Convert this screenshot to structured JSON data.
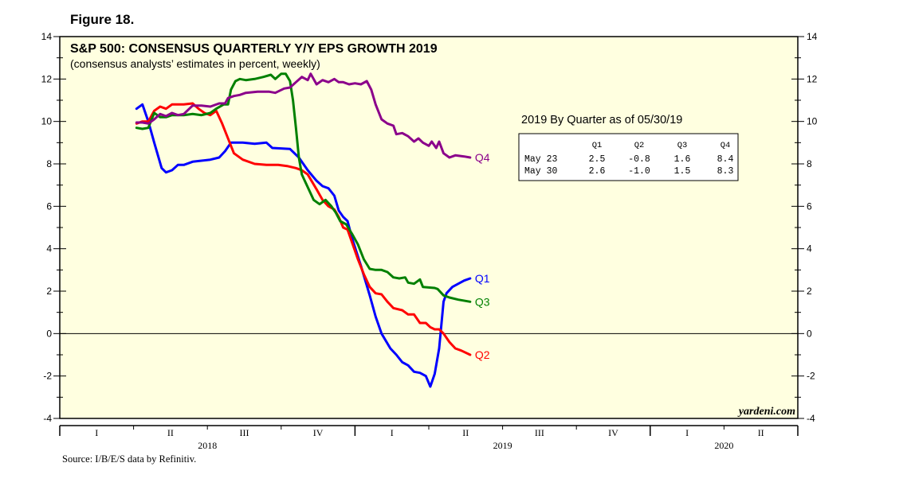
{
  "figure_label": "Figure 18.",
  "source": "Source: I/B/E/S data by Refinitiv.",
  "brand": "yardeni.com",
  "colors": {
    "plot_bg": "#ffffe0",
    "Q1": "#0000ff",
    "Q2": "#ff0000",
    "Q3": "#008000",
    "Q4": "#8b008b"
  },
  "table": {
    "title": "2019 By Quarter as of 05/30/19",
    "headers": [
      "Q1",
      "Q2",
      "Q3",
      "Q4"
    ],
    "rows": [
      {
        "label": "May 23",
        "values": [
          "2.5",
          "-0.8",
          "1.6",
          "8.4"
        ]
      },
      {
        "label": "May 30",
        "values": [
          "2.6",
          "-1.0",
          "1.5",
          "8.3"
        ]
      }
    ]
  },
  "chart_data": {
    "type": "line",
    "title": "S&P 500: CONSENSUS QUARTERLY Y/Y EPS GROWTH 2019",
    "subtitle": "(consensus analysts’ estimates in percent, weekly)",
    "xlabel": "",
    "ylabel": "",
    "xlim": [
      2018.0,
      2020.5
    ],
    "ylim": [
      -4,
      14
    ],
    "yticks": [
      -4,
      -2,
      0,
      2,
      4,
      6,
      8,
      10,
      12,
      14
    ],
    "grid": false,
    "zero_line": true,
    "quarter_labels": [
      "I",
      "II",
      "III",
      "IV",
      "I",
      "II",
      "III",
      "IV",
      "I",
      "II"
    ],
    "year_labels": [
      "2018",
      "2019",
      "2020"
    ],
    "series": [
      {
        "name": "Q1",
        "points": [
          [
            2018.26,
            10.6
          ],
          [
            2018.28,
            10.8
          ],
          [
            2018.3,
            10.0
          ],
          [
            2018.32,
            9.0
          ],
          [
            2018.345,
            7.8
          ],
          [
            2018.36,
            7.6
          ],
          [
            2018.38,
            7.7
          ],
          [
            2018.4,
            7.95
          ],
          [
            2018.42,
            7.95
          ],
          [
            2018.45,
            8.1
          ],
          [
            2018.48,
            8.15
          ],
          [
            2018.51,
            8.2
          ],
          [
            2018.54,
            8.3
          ],
          [
            2018.56,
            8.6
          ],
          [
            2018.58,
            9.0
          ],
          [
            2018.62,
            9.0
          ],
          [
            2018.66,
            8.95
          ],
          [
            2018.7,
            9.0
          ],
          [
            2018.72,
            8.75
          ],
          [
            2018.78,
            8.7
          ],
          [
            2018.81,
            8.3
          ],
          [
            2018.84,
            7.7
          ],
          [
            2018.87,
            7.2
          ],
          [
            2018.89,
            6.95
          ],
          [
            2018.91,
            6.85
          ],
          [
            2018.93,
            6.5
          ],
          [
            2018.945,
            5.8
          ],
          [
            2018.96,
            5.5
          ],
          [
            2018.975,
            5.3
          ],
          [
            2018.99,
            4.5
          ],
          [
            2019.02,
            3.2
          ],
          [
            2019.05,
            1.8
          ],
          [
            2019.07,
            0.8
          ],
          [
            2019.09,
            0.0
          ],
          [
            2019.12,
            -0.7
          ],
          [
            2019.14,
            -1.0
          ],
          [
            2019.16,
            -1.35
          ],
          [
            2019.18,
            -1.5
          ],
          [
            2019.2,
            -1.8
          ],
          [
            2019.22,
            -1.85
          ],
          [
            2019.24,
            -2.0
          ],
          [
            2019.255,
            -2.5
          ],
          [
            2019.27,
            -1.9
          ],
          [
            2019.285,
            -0.7
          ],
          [
            2019.3,
            1.5
          ],
          [
            2019.31,
            1.9
          ],
          [
            2019.33,
            2.2
          ],
          [
            2019.35,
            2.35
          ],
          [
            2019.37,
            2.5
          ],
          [
            2019.39,
            2.6
          ]
        ]
      },
      {
        "name": "Q2",
        "points": [
          [
            2018.26,
            9.9
          ],
          [
            2018.28,
            10.0
          ],
          [
            2018.3,
            10.0
          ],
          [
            2018.32,
            10.5
          ],
          [
            2018.34,
            10.7
          ],
          [
            2018.36,
            10.6
          ],
          [
            2018.38,
            10.8
          ],
          [
            2018.42,
            10.8
          ],
          [
            2018.45,
            10.85
          ],
          [
            2018.47,
            10.6
          ],
          [
            2018.49,
            10.4
          ],
          [
            2018.51,
            10.3
          ],
          [
            2018.53,
            10.5
          ],
          [
            2018.55,
            9.9
          ],
          [
            2018.57,
            9.2
          ],
          [
            2018.59,
            8.5
          ],
          [
            2018.62,
            8.2
          ],
          [
            2018.66,
            8.0
          ],
          [
            2018.7,
            7.95
          ],
          [
            2018.74,
            7.95
          ],
          [
            2018.77,
            7.9
          ],
          [
            2018.8,
            7.8
          ],
          [
            2018.82,
            7.7
          ],
          [
            2018.84,
            7.5
          ],
          [
            2018.87,
            6.8
          ],
          [
            2018.89,
            6.3
          ],
          [
            2018.91,
            6.0
          ],
          [
            2018.93,
            5.85
          ],
          [
            2018.945,
            5.5
          ],
          [
            2018.96,
            5.0
          ],
          [
            2018.975,
            4.9
          ],
          [
            2018.99,
            4.3
          ],
          [
            2019.01,
            3.5
          ],
          [
            2019.03,
            2.8
          ],
          [
            2019.05,
            2.2
          ],
          [
            2019.07,
            1.9
          ],
          [
            2019.09,
            1.85
          ],
          [
            2019.11,
            1.5
          ],
          [
            2019.13,
            1.2
          ],
          [
            2019.16,
            1.1
          ],
          [
            2019.18,
            0.9
          ],
          [
            2019.2,
            0.9
          ],
          [
            2019.22,
            0.5
          ],
          [
            2019.24,
            0.5
          ],
          [
            2019.255,
            0.3
          ],
          [
            2019.27,
            0.2
          ],
          [
            2019.285,
            0.2
          ],
          [
            2019.3,
            0.0
          ],
          [
            2019.32,
            -0.4
          ],
          [
            2019.34,
            -0.7
          ],
          [
            2019.36,
            -0.8
          ],
          [
            2019.39,
            -1.0
          ]
        ]
      },
      {
        "name": "Q3",
        "points": [
          [
            2018.26,
            9.7
          ],
          [
            2018.28,
            9.65
          ],
          [
            2018.3,
            9.7
          ],
          [
            2018.32,
            10.4
          ],
          [
            2018.34,
            10.2
          ],
          [
            2018.36,
            10.2
          ],
          [
            2018.38,
            10.3
          ],
          [
            2018.42,
            10.3
          ],
          [
            2018.45,
            10.35
          ],
          [
            2018.48,
            10.3
          ],
          [
            2018.51,
            10.4
          ],
          [
            2018.53,
            10.6
          ],
          [
            2018.555,
            10.8
          ],
          [
            2018.57,
            10.8
          ],
          [
            2018.58,
            11.5
          ],
          [
            2018.595,
            11.9
          ],
          [
            2018.61,
            12.0
          ],
          [
            2018.63,
            11.95
          ],
          [
            2018.66,
            12.0
          ],
          [
            2018.69,
            12.1
          ],
          [
            2018.715,
            12.2
          ],
          [
            2018.73,
            12.0
          ],
          [
            2018.75,
            12.25
          ],
          [
            2018.765,
            12.25
          ],
          [
            2018.78,
            11.9
          ],
          [
            2018.79,
            11.0
          ],
          [
            2018.8,
            9.7
          ],
          [
            2018.81,
            8.3
          ],
          [
            2018.82,
            7.5
          ],
          [
            2018.84,
            6.9
          ],
          [
            2018.86,
            6.3
          ],
          [
            2018.88,
            6.1
          ],
          [
            2018.9,
            6.3
          ],
          [
            2018.92,
            6.0
          ],
          [
            2018.935,
            5.7
          ],
          [
            2018.95,
            5.3
          ],
          [
            2018.97,
            5.15
          ],
          [
            2018.99,
            4.7
          ],
          [
            2019.01,
            4.2
          ],
          [
            2019.03,
            3.5
          ],
          [
            2019.05,
            3.05
          ],
          [
            2019.07,
            3.0
          ],
          [
            2019.09,
            3.0
          ],
          [
            2019.11,
            2.9
          ],
          [
            2019.13,
            2.65
          ],
          [
            2019.15,
            2.6
          ],
          [
            2019.17,
            2.65
          ],
          [
            2019.18,
            2.4
          ],
          [
            2019.2,
            2.35
          ],
          [
            2019.22,
            2.55
          ],
          [
            2019.23,
            2.2
          ],
          [
            2019.27,
            2.15
          ],
          [
            2019.28,
            2.1
          ],
          [
            2019.3,
            1.8
          ],
          [
            2019.32,
            1.7
          ],
          [
            2019.35,
            1.6
          ],
          [
            2019.39,
            1.5
          ]
        ]
      },
      {
        "name": "Q4",
        "points": [
          [
            2018.26,
            9.95
          ],
          [
            2018.28,
            9.95
          ],
          [
            2018.3,
            9.9
          ],
          [
            2018.32,
            10.1
          ],
          [
            2018.34,
            10.35
          ],
          [
            2018.36,
            10.25
          ],
          [
            2018.38,
            10.4
          ],
          [
            2018.4,
            10.3
          ],
          [
            2018.42,
            10.35
          ],
          [
            2018.45,
            10.75
          ],
          [
            2018.48,
            10.75
          ],
          [
            2018.51,
            10.7
          ],
          [
            2018.54,
            10.85
          ],
          [
            2018.56,
            10.85
          ],
          [
            2018.57,
            11.1
          ],
          [
            2018.59,
            11.2
          ],
          [
            2018.61,
            11.25
          ],
          [
            2018.63,
            11.35
          ],
          [
            2018.67,
            11.4
          ],
          [
            2018.71,
            11.4
          ],
          [
            2018.73,
            11.35
          ],
          [
            2018.76,
            11.55
          ],
          [
            2018.78,
            11.6
          ],
          [
            2018.8,
            11.85
          ],
          [
            2018.82,
            12.1
          ],
          [
            2018.84,
            11.95
          ],
          [
            2018.85,
            12.25
          ],
          [
            2018.87,
            11.75
          ],
          [
            2018.89,
            11.95
          ],
          [
            2018.91,
            11.85
          ],
          [
            2018.93,
            12.0
          ],
          [
            2018.945,
            11.85
          ],
          [
            2018.96,
            11.85
          ],
          [
            2018.98,
            11.75
          ],
          [
            2019.0,
            11.8
          ],
          [
            2019.02,
            11.75
          ],
          [
            2019.04,
            11.9
          ],
          [
            2019.055,
            11.5
          ],
          [
            2019.07,
            10.8
          ],
          [
            2019.09,
            10.1
          ],
          [
            2019.11,
            9.9
          ],
          [
            2019.13,
            9.8
          ],
          [
            2019.14,
            9.4
          ],
          [
            2019.16,
            9.45
          ],
          [
            2019.18,
            9.3
          ],
          [
            2019.2,
            9.05
          ],
          [
            2019.215,
            9.2
          ],
          [
            2019.23,
            9.0
          ],
          [
            2019.25,
            8.85
          ],
          [
            2019.26,
            9.05
          ],
          [
            2019.275,
            8.75
          ],
          [
            2019.285,
            9.05
          ],
          [
            2019.3,
            8.5
          ],
          [
            2019.32,
            8.3
          ],
          [
            2019.34,
            8.4
          ],
          [
            2019.37,
            8.35
          ],
          [
            2019.39,
            8.3
          ]
        ]
      }
    ]
  }
}
